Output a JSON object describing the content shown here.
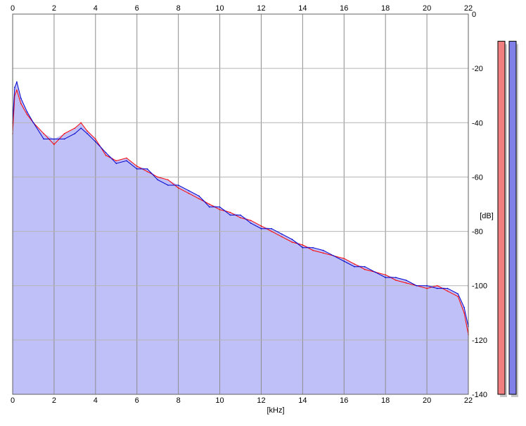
{
  "chart_data": {
    "type": "line",
    "title": "",
    "xlabel": "[kHz]",
    "ylabel": "[dB]",
    "xlim": [
      0,
      22
    ],
    "ylim": [
      -140,
      0
    ],
    "x_ticks": [
      "0",
      "2",
      "4",
      "6",
      "8",
      "10",
      "12",
      "14",
      "16",
      "18",
      "20",
      "22"
    ],
    "y_ticks": [
      "0",
      "-20",
      "-40",
      "-60",
      "-80",
      "-100",
      "-120",
      "-140"
    ],
    "grid": true,
    "legend": "none",
    "colors": {
      "left_channel": "#ff0000",
      "right_channel": "#0000cc",
      "fill": "#c0c0f8",
      "meter_left": "#f08080",
      "meter_right": "#8080e8"
    },
    "x": [
      0.0,
      0.1,
      0.2,
      0.4,
      0.7,
      1.0,
      1.5,
      2.0,
      2.5,
      3.0,
      3.3,
      3.6,
      4.0,
      4.5,
      5.0,
      5.5,
      6.0,
      6.5,
      7.0,
      7.5,
      8.0,
      8.5,
      9.0,
      9.5,
      10.0,
      10.5,
      11.0,
      11.5,
      12.0,
      12.5,
      13.0,
      13.5,
      14.0,
      14.5,
      15.0,
      15.5,
      16.0,
      16.5,
      17.0,
      17.5,
      18.0,
      18.5,
      19.0,
      19.5,
      20.0,
      20.5,
      21.0,
      21.5,
      21.8,
      22.0
    ],
    "series": [
      {
        "values": [
          -44,
          -30,
          -28,
          -33,
          -37,
          -40,
          -44,
          -48,
          -44,
          -42,
          -40,
          -43,
          -46,
          -52,
          -54,
          -53,
          -56,
          -58,
          -60,
          -61,
          -64,
          -66,
          -68,
          -70,
          -72,
          -73,
          -75,
          -76,
          -78,
          -80,
          -82,
          -84,
          -85,
          -87,
          -88,
          -89,
          -90,
          -92,
          -94,
          -95,
          -96,
          -98,
          -99,
          -100,
          -101,
          -100,
          -102,
          -104,
          -110,
          -118
        ]
      },
      {
        "values": [
          -40,
          -27,
          -25,
          -31,
          -36,
          -40,
          -46,
          -46,
          -46,
          -44,
          -42,
          -44,
          -47,
          -51,
          -55,
          -54,
          -57,
          -57,
          -61,
          -63,
          -63,
          -65,
          -67,
          -71,
          -71,
          -74,
          -74,
          -77,
          -79,
          -79,
          -81,
          -83,
          -86,
          -86,
          -87,
          -89,
          -91,
          -93,
          -93,
          -95,
          -97,
          -97,
          -98,
          -100,
          -100,
          -101,
          -101,
          -103,
          -108,
          -115
        ]
      }
    ],
    "meters": {
      "left": -10,
      "right": -10
    }
  }
}
